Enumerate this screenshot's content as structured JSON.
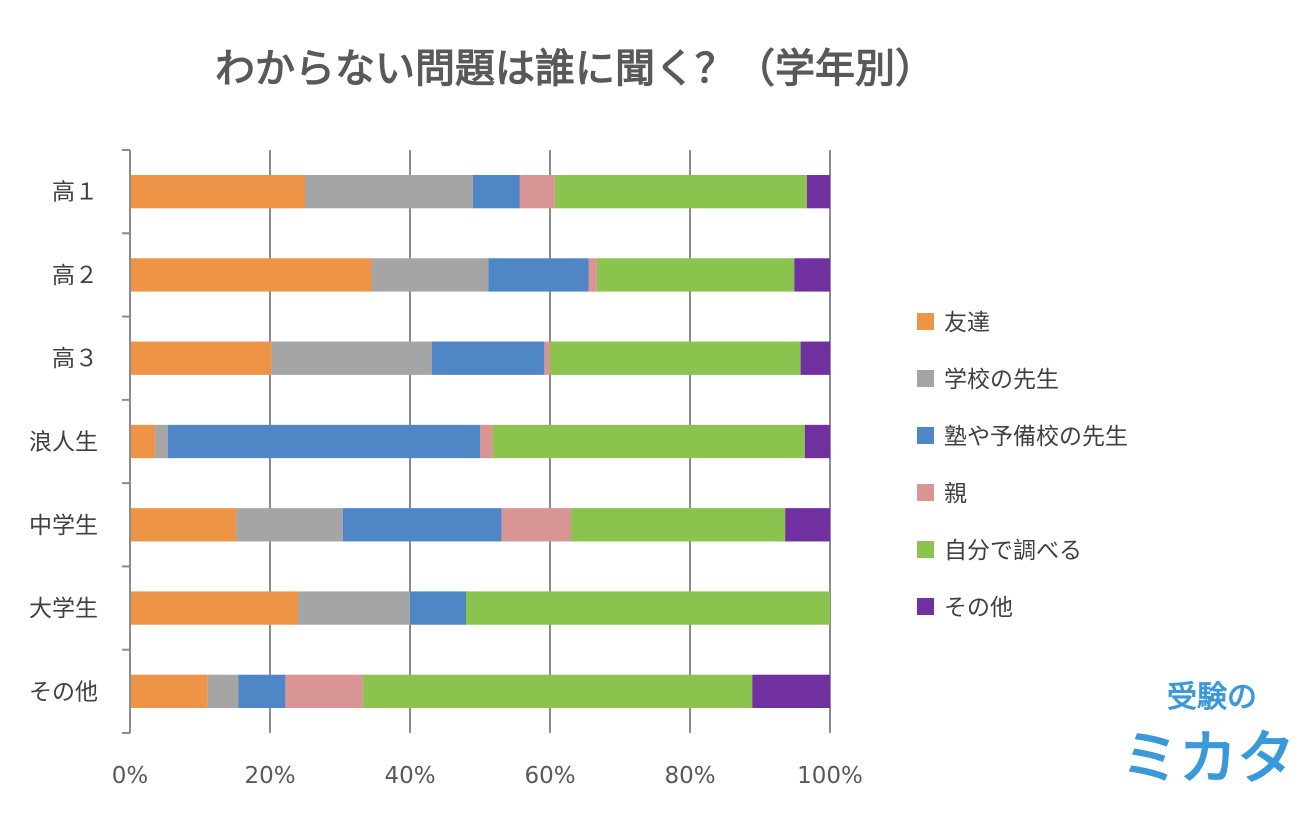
{
  "chart_data": {
    "type": "bar",
    "orientation": "horizontal",
    "stacked": "percent",
    "title": "わからない問題は誰に聞く？（学年別）",
    "categories": [
      "高１",
      "高２",
      "高３",
      "浪人生",
      "中学生",
      "大学生",
      "その他"
    ],
    "series": [
      {
        "name": "友達",
        "color": "#ED9447",
        "values": [
          25,
          34.5,
          20.2,
          3.6,
          15.2,
          24,
          11.1
        ]
      },
      {
        "name": "学校の先生",
        "color": "#A5A5A5",
        "values": [
          24,
          16.7,
          22.9,
          1.8,
          15.2,
          16,
          4.4
        ]
      },
      {
        "name": "塾や予備校の先生",
        "color": "#4F86C6",
        "values": [
          6.7,
          14.3,
          16.1,
          44.6,
          22.7,
          8,
          6.7
        ]
      },
      {
        "name": "親",
        "color": "#D99594",
        "values": [
          5,
          1.2,
          0.8,
          1.8,
          9.9,
          0,
          11.1
        ]
      },
      {
        "name": "自分で調べる",
        "color": "#8BC34F",
        "values": [
          36,
          28.2,
          35.8,
          44.6,
          30.6,
          52,
          55.6
        ]
      },
      {
        "name": "その他",
        "color": "#7030A0",
        "values": [
          3.3,
          5.1,
          4.2,
          3.6,
          6.4,
          0,
          11.1
        ]
      }
    ],
    "xlim": [
      0,
      100
    ],
    "xticks": [
      "0%",
      "20%",
      "40%",
      "60%",
      "80%",
      "100%"
    ],
    "grid": true,
    "legend_position": "right"
  },
  "logo": {
    "top_text": "受験の",
    "bottom_text": "ミカタ",
    "color": "#3a9ad9"
  }
}
